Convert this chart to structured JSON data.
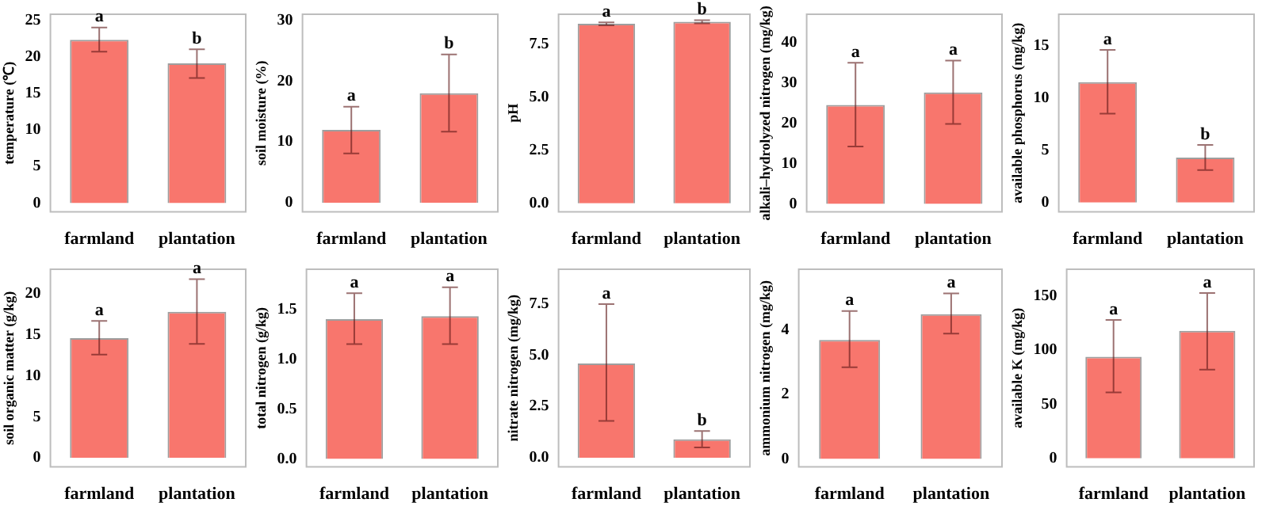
{
  "chart_data": [
    {
      "type": "bar",
      "ylabel": "temperature (℃)",
      "categories": [
        "farmland",
        "plantation"
      ],
      "values": [
        22.3,
        19.1
      ],
      "errors": [
        [
          20.7,
          24
        ],
        [
          17.1,
          21
        ]
      ],
      "color": "#f8766d",
      "ylim": [
        -1.2,
        25.8
      ],
      "yticks": [
        0,
        5,
        10,
        15,
        20,
        25
      ],
      "annotations": [
        {
          "text": "a",
          "x": "farmland",
          "y": 24
        },
        {
          "text": "b",
          "x": "plantation",
          "y": 21
        }
      ]
    },
    {
      "type": "bar",
      "ylabel": "soil moisture (%)",
      "categories": [
        "farmland",
        "plantation"
      ],
      "values": [
        12,
        18
      ],
      "errors": [
        [
          8.1,
          15.8
        ],
        [
          11.7,
          24.4
        ]
      ],
      "color": "#f8766d",
      "ylim": [
        -1.5,
        31
      ],
      "yticks": [
        0,
        10,
        20,
        30
      ],
      "annotations": [
        {
          "text": "a",
          "x": "farmland",
          "y": 15.8
        },
        {
          "text": "b",
          "x": "plantation",
          "y": 24.4
        }
      ]
    },
    {
      "type": "bar",
      "ylabel": "pH",
      "categories": [
        "farmland",
        "plantation"
      ],
      "values": [
        8.45,
        8.55
      ],
      "errors": [
        [
          8.38,
          8.52
        ],
        [
          8.47,
          8.62
        ]
      ],
      "color": "#f8766d",
      "ylim": [
        -0.4,
        8.9
      ],
      "yticks": [
        {
          "value": 0,
          "label": "0.0"
        },
        2.5,
        {
          "value": 5,
          "label": "5.0"
        },
        7.5
      ],
      "annotations": [
        {
          "text": "a",
          "x": "farmland",
          "y": 8.52
        },
        {
          "text": "b",
          "x": "plantation",
          "y": 8.62
        }
      ]
    },
    {
      "type": "bar",
      "ylabel": "alkali–hydrolyzed nitrogen (mg/kg)",
      "categories": [
        "farmland",
        "plantation"
      ],
      "values": [
        24.5,
        27.6
      ],
      "errors": [
        [
          14.2,
          35
        ],
        [
          19.8,
          35.5
        ]
      ],
      "color": "#f8766d",
      "ylim": [
        -2,
        47
      ],
      "yticks": [
        0,
        10,
        20,
        30,
        40
      ],
      "annotations": [
        {
          "text": "a",
          "x": "farmland",
          "y": 35
        },
        {
          "text": "a",
          "x": "plantation",
          "y": 35.5
        }
      ]
    },
    {
      "type": "bar",
      "ylabel": "available phosphorus (mg/kg)",
      "categories": [
        "farmland",
        "plantation"
      ],
      "values": [
        11.5,
        4.3
      ],
      "errors": [
        [
          8.5,
          14.6
        ],
        [
          3.1,
          5.5
        ]
      ],
      "color": "#f8766d",
      "ylim": [
        -0.9,
        18
      ],
      "yticks": [
        0,
        5,
        10,
        15
      ],
      "annotations": [
        {
          "text": "a",
          "x": "farmland",
          "y": 14.6
        },
        {
          "text": "b",
          "x": "plantation",
          "y": 5.5
        }
      ]
    },
    {
      "type": "bar",
      "ylabel": "soil organic matter (g/kg)",
      "categories": [
        "farmland",
        "plantation"
      ],
      "values": [
        14.6,
        17.8
      ],
      "errors": [
        [
          12.6,
          16.7
        ],
        [
          13.9,
          21.8
        ]
      ],
      "color": "#f8766d",
      "ylim": [
        -1.1,
        23
      ],
      "yticks": [
        0,
        5,
        10,
        15,
        20
      ],
      "annotations": [
        {
          "text": "a",
          "x": "farmland",
          "y": 16.7
        },
        {
          "text": "a",
          "x": "plantation",
          "y": 21.8
        }
      ]
    },
    {
      "type": "bar",
      "ylabel": "total nitrogen (g/kg)",
      "categories": [
        "farmland",
        "plantation"
      ],
      "values": [
        1.4,
        1.43
      ],
      "errors": [
        [
          1.15,
          1.66
        ],
        [
          1.15,
          1.72
        ]
      ],
      "color": "#f8766d",
      "ylim": [
        -0.08,
        1.9
      ],
      "yticks": [
        {
          "value": 0,
          "label": "0.0"
        },
        0.5,
        {
          "value": 1,
          "label": "1.0"
        },
        1.5
      ],
      "annotations": [
        {
          "text": "a",
          "x": "farmland",
          "y": 1.66
        },
        {
          "text": "a",
          "x": "plantation",
          "y": 1.72
        }
      ]
    },
    {
      "type": "bar",
      "ylabel": "nitrate nitrogen (mg/kg)",
      "categories": [
        "farmland",
        "plantation"
      ],
      "values": [
        4.6,
        0.9
      ],
      "errors": [
        [
          1.8,
          7.5
        ],
        [
          0.5,
          1.3
        ]
      ],
      "color": "#f8766d",
      "ylim": [
        -0.45,
        9.2
      ],
      "yticks": [
        {
          "value": 0,
          "label": "0.0"
        },
        2.5,
        {
          "value": 5,
          "label": "5.0"
        },
        7.5
      ],
      "annotations": [
        {
          "text": "a",
          "x": "farmland",
          "y": 7.5
        },
        {
          "text": "b",
          "x": "plantation",
          "y": 1.3
        }
      ]
    },
    {
      "type": "bar",
      "ylabel": "ammonium nitrogen (mg/kg)",
      "categories": [
        "farmland",
        "plantation"
      ],
      "values": [
        3.7,
        4.5
      ],
      "errors": [
        [
          2.85,
          4.6
        ],
        [
          3.9,
          5.15
        ]
      ],
      "color": "#f8766d",
      "ylim": [
        -0.25,
        5.9
      ],
      "yticks": [
        0,
        2,
        4
      ],
      "annotations": [
        {
          "text": "a",
          "x": "farmland",
          "y": 4.6
        },
        {
          "text": "a",
          "x": "plantation",
          "y": 5.15
        }
      ]
    },
    {
      "type": "bar",
      "ylabel": "available K (mg/kg)",
      "categories": [
        "farmland",
        "plantation"
      ],
      "values": [
        94,
        118
      ],
      "errors": [
        [
          61,
          128
        ],
        [
          82,
          153
        ]
      ],
      "color": "#f8766d",
      "ylim": [
        -8,
        175
      ],
      "yticks": [
        0,
        50,
        100,
        150
      ],
      "annotations": [
        {
          "text": "a",
          "x": "farmland",
          "y": 128
        },
        {
          "text": "a",
          "x": "plantation",
          "y": 153
        }
      ]
    }
  ]
}
